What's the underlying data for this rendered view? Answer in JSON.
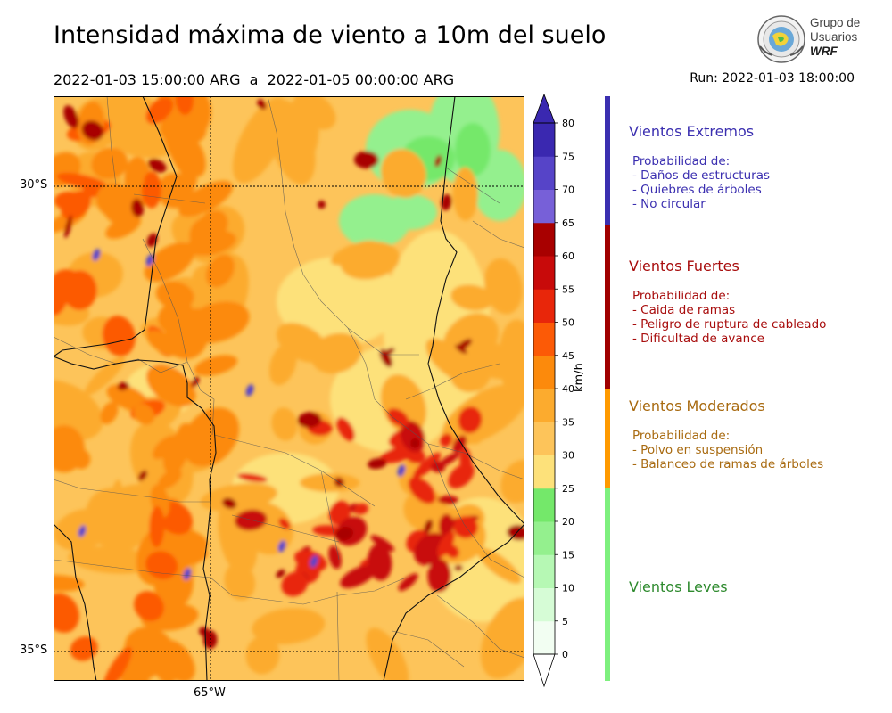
{
  "header": {
    "title": "Intensidad máxima de viento a 10m del suelo",
    "period": "2022-01-03 15:00:00 ARG  a  2022-01-05 00:00:00 ARG",
    "run": "Run: 2022-01-03 18:00:00"
  },
  "logo": {
    "line1": "Grupo de",
    "line2": "Usuarios",
    "line3": "WRF"
  },
  "map": {
    "lat_labels": [
      "30°S",
      "35°S"
    ],
    "lon_labels": [
      "65°W"
    ]
  },
  "colorbar": {
    "unit": "km/h",
    "ticks": [
      "0",
      "5",
      "10",
      "15",
      "20",
      "25",
      "30",
      "35",
      "40",
      "45",
      "50",
      "55",
      "60",
      "65",
      "70",
      "75",
      "80"
    ],
    "colors": [
      "#f2fef2",
      "#d6fcd6",
      "#b6f8b4",
      "#94f08e",
      "#74e86a",
      "#fde17a",
      "#fdc45a",
      "#fcab2e",
      "#fc8a0c",
      "#fc5a06",
      "#e8260a",
      "#c80a0a",
      "#a80000",
      "#7760d8",
      "#5644c8",
      "#3a28b0"
    ]
  },
  "categories": [
    {
      "title": "Vientos Extremos",
      "color": "#3b2fb0",
      "lines": [
        "Probabilidad de:",
        "- Daños de estructuras",
        "- Quiebres de árboles",
        "- No circular"
      ]
    },
    {
      "title": "Vientos Fuertes",
      "color": "#a80d0d",
      "lines": [
        "Probabilidad de:",
        "- Caida de ramas",
        "- Peligro de ruptura de cableado",
        "- Dificultad de avance"
      ]
    },
    {
      "title": "Vientos Moderados",
      "color": "#a86a10",
      "lines": [
        "Probabilidad de:",
        "- Polvo en suspensión",
        "- Balanceo de ramas de árboles"
      ]
    },
    {
      "title": "Vientos Leves",
      "color": "#2e8a2e",
      "lines": []
    }
  ],
  "category_bar_colors": [
    "#3b2fb0",
    "#a00000",
    "#ff9a00",
    "#7ef07e"
  ]
}
